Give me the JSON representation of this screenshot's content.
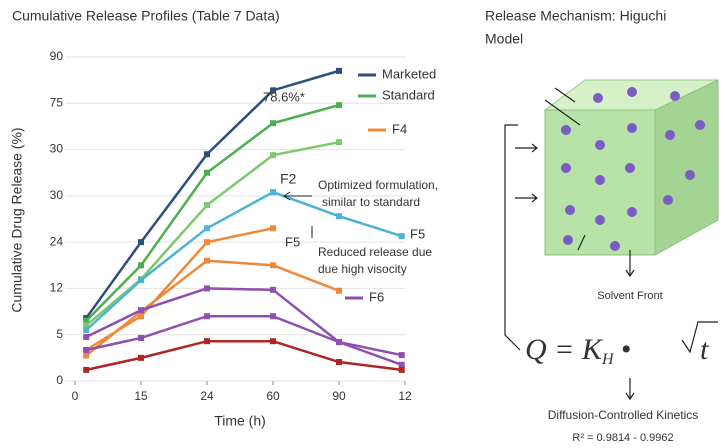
{
  "chart_data": {
    "type": "line",
    "title": "Cumulative Release Profiles (Table 7 Data)",
    "x_label": "Time (h)",
    "y_label": "Cumulative Drug Release (%)",
    "x": [
      0.17,
      1,
      2,
      3,
      4,
      4.95
    ],
    "xlim": [
      0,
      5
    ],
    "xticks": [
      {
        "value": 0,
        "label": "0"
      },
      {
        "value": 1,
        "label": "15"
      },
      {
        "value": 2,
        "label": "24"
      },
      {
        "value": 3,
        "label": "60"
      },
      {
        "value": 4,
        "label": "90"
      },
      {
        "value": 5,
        "label": "12"
      }
    ],
    "ylim": [
      0,
      7
    ],
    "yticks": [
      {
        "value": 0,
        "label": "0"
      },
      {
        "value": 1,
        "label": "5"
      },
      {
        "value": 2,
        "label": "12"
      },
      {
        "value": 3,
        "label": "24"
      },
      {
        "value": 4,
        "label": "30"
      },
      {
        "value": 5,
        "label": "30"
      },
      {
        "value": 6,
        "label": "75"
      },
      {
        "value": 7,
        "label": "90"
      }
    ],
    "grid": true,
    "series": [
      {
        "name": "Marketed",
        "color": "#2c4e7e",
        "values": [
          1.36,
          3.0,
          4.9,
          6.28,
          6.7,
          null
        ]
      },
      {
        "name": "Standard",
        "color": "#4caf50",
        "values": [
          1.3,
          2.5,
          4.5,
          5.57,
          5.96,
          null
        ]
      },
      {
        "color": "#7cc96b",
        "values": [
          1.2,
          2.2,
          3.8,
          4.88,
          5.16,
          null
        ]
      },
      {
        "name": "F5",
        "color": "#4bb3d6",
        "values": [
          1.1,
          2.18,
          3.3,
          4.08,
          3.56,
          3.13
        ]
      },
      {
        "name": "F4",
        "color": "#f0883a",
        "values": [
          0.67,
          1.4,
          3.0,
          3.3,
          null,
          null
        ]
      },
      {
        "color": "#f0883a",
        "values": [
          0.55,
          1.5,
          2.6,
          2.5,
          1.95,
          null
        ]
      },
      {
        "name": "F6",
        "color": "#8e4fb0",
        "values": [
          0.95,
          1.53,
          2.0,
          1.97,
          0.84,
          0.56
        ]
      },
      {
        "color": "#8e4fb0",
        "values": [
          0.67,
          0.93,
          1.4,
          1.4,
          0.84,
          0.35
        ]
      },
      {
        "color": "#b02424",
        "values": [
          0.24,
          0.5,
          0.86,
          0.86,
          0.41,
          0.24
        ]
      }
    ],
    "annotations": [
      "78.6%*",
      "F2",
      "Optimized formulation,",
      "similar to standard",
      "F5",
      "Reduced release due",
      "due high visocity"
    ]
  },
  "mechanism": {
    "title": [
      "Release Mechanism: Higuchi",
      "Model"
    ],
    "solvent": "Solvent Front",
    "equation": {
      "lhs": "Q = ",
      "k": "K",
      "sub": "H",
      "dot": " • ",
      "var": "t"
    },
    "kinetics": "Diffusion-Controlled Kinetics",
    "r2": "R² = 0.9814 - 0.9962"
  }
}
